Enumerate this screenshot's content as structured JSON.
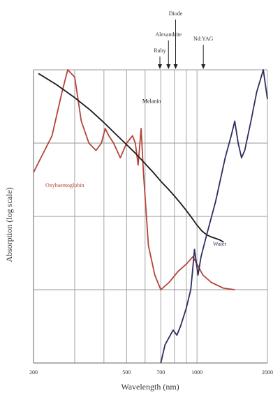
{
  "chart_data": {
    "type": "line",
    "title": "",
    "xlabel": "Wavelength (nm)",
    "ylabel": "Absorption (log scale)",
    "xlim": [
      200,
      2000
    ],
    "x_scale": "log",
    "x_ticks": [
      {
        "value": 200,
        "label": "200"
      },
      {
        "value": 300,
        "label": ""
      },
      {
        "value": 400,
        "label": ""
      },
      {
        "value": 500,
        "label": "500"
      },
      {
        "value": 600,
        "label": ""
      },
      {
        "value": 700,
        "label": "700"
      },
      {
        "value": 800,
        "label": ""
      },
      {
        "value": 900,
        "label": ""
      },
      {
        "value": 1000,
        "label": "1000"
      },
      {
        "value": 2000,
        "label": "2000"
      }
    ],
    "ylim": [
      0,
      4
    ],
    "y_grid": [
      1,
      2,
      3,
      4
    ],
    "grid": true,
    "lasers": [
      {
        "name": "Ruby",
        "wavelength": 694
      },
      {
        "name": "Alexandrite",
        "wavelength": 755
      },
      {
        "name": "Diode",
        "wavelength": 810
      },
      {
        "name": "Nd:YAG",
        "wavelength": 1064
      }
    ],
    "series": [
      {
        "name": "Oxyhaemoglobin",
        "color": "#b5443a",
        "label_x": 272,
        "label_y": 2.4,
        "points": [
          [
            200,
            2.6
          ],
          [
            240,
            3.1
          ],
          [
            265,
            3.7
          ],
          [
            280,
            4.0
          ],
          [
            300,
            3.9
          ],
          [
            320,
            3.3
          ],
          [
            345,
            3.0
          ],
          [
            370,
            2.9
          ],
          [
            390,
            3.0
          ],
          [
            405,
            3.2
          ],
          [
            420,
            3.1
          ],
          [
            440,
            3.0
          ],
          [
            470,
            2.8
          ],
          [
            500,
            3.0
          ],
          [
            530,
            3.1
          ],
          [
            545,
            3.0
          ],
          [
            560,
            2.7
          ],
          [
            577,
            3.2
          ],
          [
            590,
            2.6
          ],
          [
            620,
            1.6
          ],
          [
            660,
            1.2
          ],
          [
            700,
            1.0
          ],
          [
            760,
            1.1
          ],
          [
            830,
            1.25
          ],
          [
            900,
            1.35
          ],
          [
            960,
            1.45
          ],
          [
            1000,
            1.35
          ],
          [
            1060,
            1.2
          ],
          [
            1150,
            1.1
          ],
          [
            1300,
            1.02
          ],
          [
            1450,
            1.0
          ]
        ]
      },
      {
        "name": "Melanin",
        "color": "#1a1a1a",
        "label_x": 640,
        "label_y": 3.55,
        "points": [
          [
            210,
            3.95
          ],
          [
            250,
            3.8
          ],
          [
            300,
            3.62
          ],
          [
            350,
            3.45
          ],
          [
            400,
            3.28
          ],
          [
            450,
            3.12
          ],
          [
            500,
            2.98
          ],
          [
            550,
            2.85
          ],
          [
            600,
            2.72
          ],
          [
            650,
            2.6
          ],
          [
            700,
            2.48
          ],
          [
            750,
            2.38
          ],
          [
            800,
            2.28
          ],
          [
            850,
            2.18
          ],
          [
            900,
            2.08
          ],
          [
            950,
            1.98
          ],
          [
            1000,
            1.88
          ],
          [
            1050,
            1.8
          ],
          [
            1100,
            1.75
          ],
          [
            1150,
            1.72
          ],
          [
            1200,
            1.7
          ],
          [
            1250,
            1.68
          ],
          [
            1300,
            1.65
          ]
        ]
      },
      {
        "name": "Water",
        "color": "#2d2f5e",
        "label_x": 1250,
        "label_y": 1.6,
        "points": [
          [
            700,
            0.0
          ],
          [
            730,
            0.25
          ],
          [
            760,
            0.35
          ],
          [
            790,
            0.45
          ],
          [
            820,
            0.38
          ],
          [
            850,
            0.5
          ],
          [
            900,
            0.75
          ],
          [
            940,
            1.0
          ],
          [
            960,
            1.3
          ],
          [
            975,
            1.55
          ],
          [
            990,
            1.4
          ],
          [
            1010,
            1.2
          ],
          [
            1040,
            1.45
          ],
          [
            1100,
            1.75
          ],
          [
            1200,
            2.2
          ],
          [
            1320,
            2.8
          ],
          [
            1400,
            3.1
          ],
          [
            1450,
            3.3
          ],
          [
            1500,
            3.0
          ],
          [
            1550,
            2.8
          ],
          [
            1600,
            2.9
          ],
          [
            1700,
            3.3
          ],
          [
            1800,
            3.7
          ],
          [
            1920,
            4.0
          ],
          [
            2000,
            3.6
          ]
        ]
      }
    ]
  }
}
